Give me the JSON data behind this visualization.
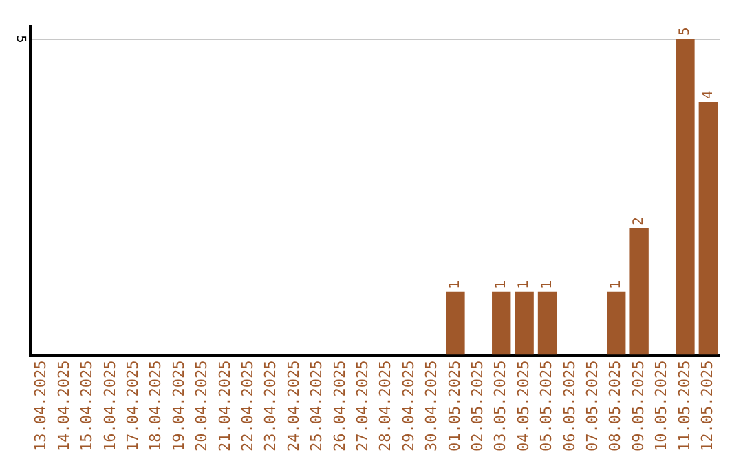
{
  "chart_data": {
    "type": "bar",
    "categories": [
      "13.04.2025",
      "14.04.2025",
      "15.04.2025",
      "16.04.2025",
      "17.04.2025",
      "18.04.2025",
      "19.04.2025",
      "20.04.2025",
      "21.04.2025",
      "22.04.2025",
      "23.04.2025",
      "24.04.2025",
      "25.04.2025",
      "26.04.2025",
      "27.04.2025",
      "28.04.2025",
      "29.04.2025",
      "30.04.2025",
      "01.05.2025",
      "02.05.2025",
      "03.05.2025",
      "04.05.2025",
      "05.05.2025",
      "06.05.2025",
      "07.05.2025",
      "08.05.2025",
      "09.05.2025",
      "10.05.2025",
      "11.05.2025",
      "12.05.2025"
    ],
    "values": [
      null,
      null,
      null,
      null,
      null,
      null,
      null,
      null,
      null,
      null,
      null,
      null,
      null,
      null,
      null,
      null,
      null,
      null,
      1,
      null,
      1,
      1,
      1,
      null,
      null,
      1,
      2,
      null,
      5,
      4
    ],
    "data_labels": true,
    "color": "#a0582a",
    "ref_lines": [
      {
        "axis": "y",
        "value": 5,
        "label": "5",
        "color": "#c8c8c8"
      }
    ],
    "legend": false
  }
}
